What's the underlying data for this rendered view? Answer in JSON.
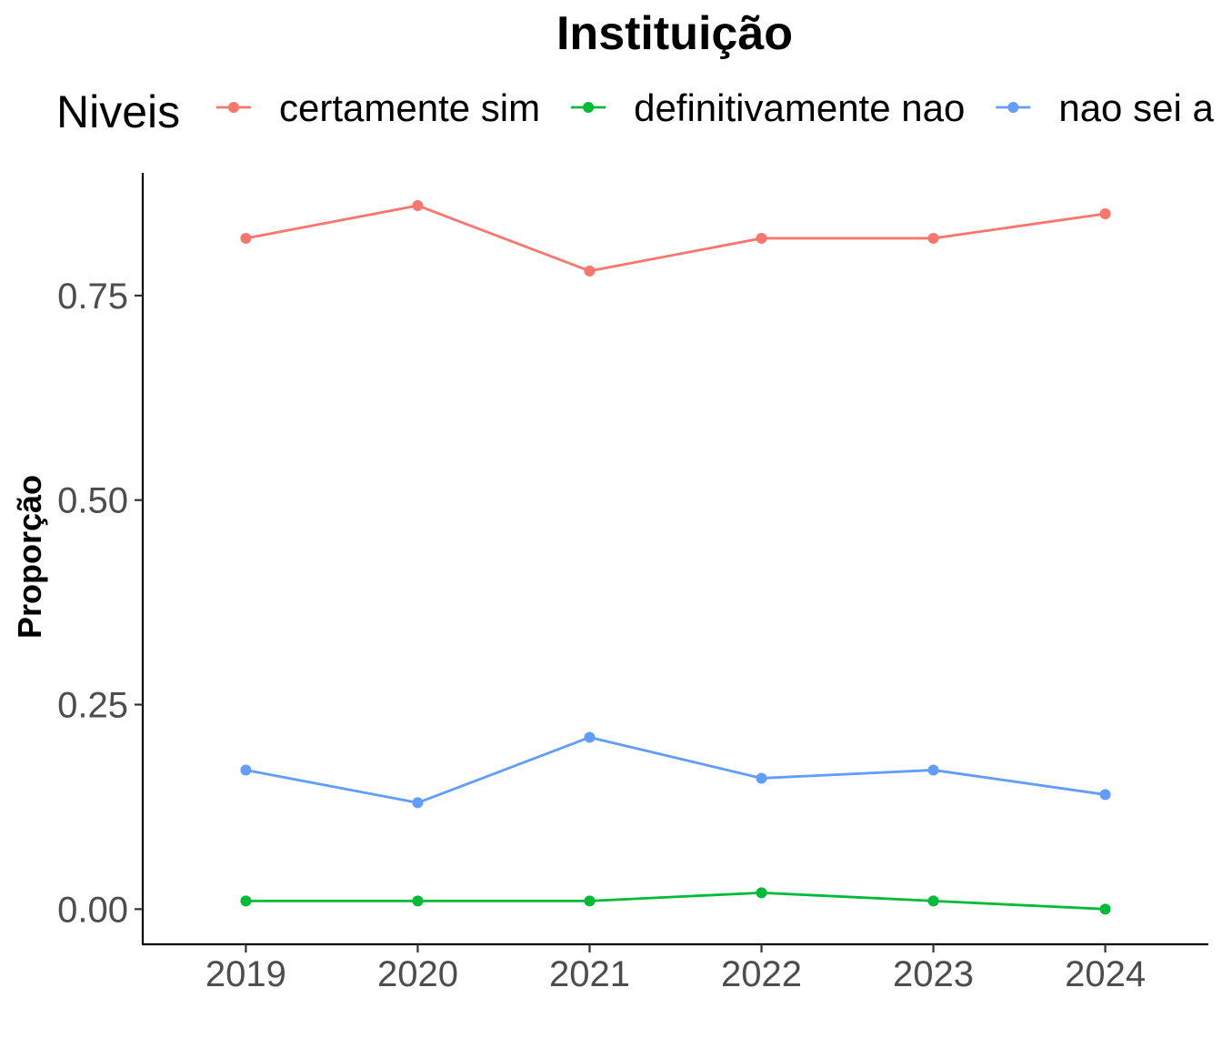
{
  "chart_data": {
    "type": "line",
    "title": "Instituição",
    "xlabel": "",
    "ylabel": "Proporção",
    "legend_title": "Niveis",
    "legend_position": "top",
    "grid": false,
    "x": [
      "2019",
      "2020",
      "2021",
      "2022",
      "2023",
      "2024"
    ],
    "xlim": [
      2018.4,
      2024.6
    ],
    "ylim": [
      -0.043,
      0.9
    ],
    "yticks": [
      0.0,
      0.25,
      0.5,
      0.75
    ],
    "ytick_labels": [
      "0.00",
      "0.25",
      "0.50",
      "0.75"
    ],
    "series": [
      {
        "name": "certamente sim",
        "color": "#F8766D",
        "values": [
          0.82,
          0.86,
          0.78,
          0.82,
          0.82,
          0.85
        ]
      },
      {
        "name": "definitivamente nao",
        "color": "#00BA38",
        "values": [
          0.01,
          0.01,
          0.01,
          0.02,
          0.01,
          0.0
        ]
      },
      {
        "name": "nao sei a",
        "color": "#619CFF",
        "values": [
          0.17,
          0.13,
          0.21,
          0.16,
          0.17,
          0.14
        ]
      }
    ]
  }
}
